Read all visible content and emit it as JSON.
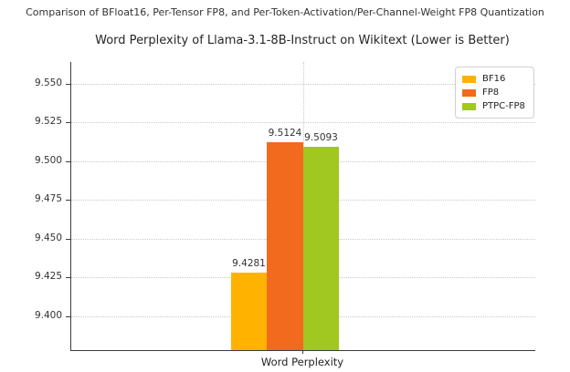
{
  "suptitle": "Comparison of BFloat16, Per-Tensor FP8, and Per-Token-Activation/Per-Channel-Weight FP8 Quantization",
  "chart_data": {
    "type": "bar",
    "title": "Word Perplexity of Llama-3.1-8B-Instruct on Wikitext (Lower is Better)",
    "xlabel": "Word Perplexity",
    "ylabel": "",
    "categories": [
      "Word Perplexity"
    ],
    "series": [
      {
        "name": "BF16",
        "values": [
          9.4281
        ],
        "color": "#FFB300"
      },
      {
        "name": "FP8",
        "values": [
          9.5124
        ],
        "color": "#F26A1D"
      },
      {
        "name": "PTPC-FP8",
        "values": [
          9.5093
        ],
        "color": "#A0C821"
      }
    ],
    "bar_value_labels": [
      "9.4281",
      "9.5124",
      "9.5093"
    ],
    "ylim": [
      9.3782,
      9.5641
    ],
    "yticks": [
      9.4,
      9.425,
      9.45,
      9.475,
      9.5,
      9.525,
      9.55
    ],
    "ytick_labels": [
      "9.400",
      "9.425",
      "9.450",
      "9.475",
      "9.500",
      "9.525",
      "9.550"
    ],
    "grid": true,
    "grid_style": "dotted",
    "legend_position": "upper right",
    "spine_color": "#3c3c3c",
    "grid_color": "#c9c9c9",
    "text_color": "#333333"
  }
}
